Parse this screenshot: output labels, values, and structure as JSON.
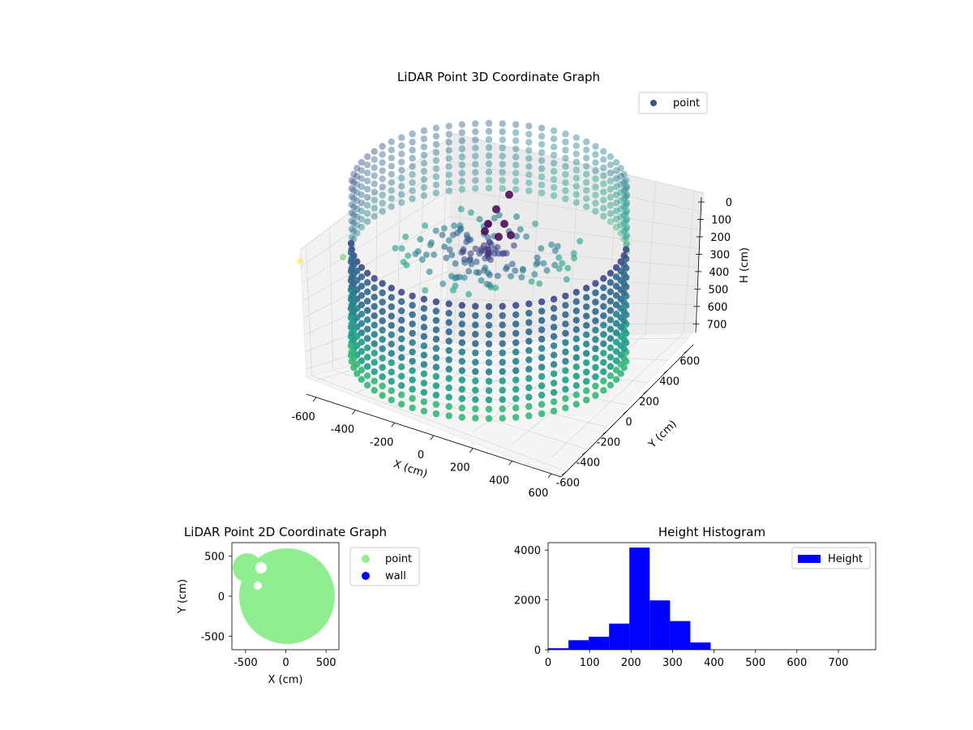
{
  "chart_data": [
    {
      "type": "scatter",
      "projection": "3d",
      "title": "LiDAR Point 3D Coordinate Graph",
      "xlabel": "X (cm)",
      "ylabel": "Y (cm)",
      "zlabel": "H (cm)",
      "xlim": [
        -650,
        650
      ],
      "ylim": [
        -650,
        650
      ],
      "zlim": [
        750,
        0
      ],
      "z_inverted": true,
      "xticks": [
        "-600",
        "-400",
        "-200",
        "0",
        "200",
        "400",
        "600"
      ],
      "yticks": [
        "-600",
        "-400",
        "-200",
        "0",
        "200",
        "400",
        "600"
      ],
      "zticks": [
        "0",
        "100",
        "200",
        "300",
        "400",
        "500",
        "600",
        "700"
      ],
      "grid": true,
      "legend": {
        "placement": "top-right",
        "entries": [
          "point"
        ]
      },
      "colormap": "viridis",
      "series": [
        {
          "name": "point",
          "shape": "ring of vertical point columns",
          "ring_radius_cm": 520,
          "height_range_cm": [
            120,
            700
          ],
          "center_cluster": {
            "x": -50,
            "y": 100,
            "height_range_cm": [
              0,
              350
            ]
          }
        }
      ]
    },
    {
      "type": "scatter",
      "title": "LiDAR Point 2D Coordinate Graph",
      "xlabel": "X (cm)",
      "ylabel": "Y (cm)",
      "xlim": [
        -670,
        660
      ],
      "ylim": [
        -670,
        670
      ],
      "xticks": [
        "-500",
        "0",
        "500"
      ],
      "yticks": [
        "-500",
        "0",
        "500"
      ],
      "legend": {
        "placement": "outside-right",
        "entries": [
          "point",
          "wall"
        ]
      },
      "series": [
        {
          "name": "point",
          "color": "#90ee90",
          "shape": "filled disk radius ~580 cm centered near (0,0)"
        },
        {
          "name": "wall",
          "color": "#0000ff",
          "points": []
        }
      ]
    },
    {
      "type": "bar",
      "subtype": "histogram",
      "title": "Height Histogram",
      "xlabel": "",
      "ylabel": "",
      "xlim": [
        0,
        790
      ],
      "ylim": [
        0,
        4300
      ],
      "xticks": [
        "0",
        "100",
        "200",
        "300",
        "400",
        "500",
        "600",
        "700"
      ],
      "yticks": [
        "0",
        "2000",
        "4000"
      ],
      "legend": {
        "placement": "top-right",
        "entries": [
          "Height"
        ]
      },
      "bin_edges": [
        0,
        49,
        98,
        147,
        196,
        245,
        294,
        343,
        392,
        441,
        490,
        539,
        588,
        637,
        686,
        735,
        784
      ],
      "series": [
        {
          "name": "Height",
          "color": "#0000ff",
          "values": [
            60,
            380,
            520,
            1050,
            4100,
            1980,
            1150,
            290,
            5,
            3,
            2,
            2,
            2,
            2,
            2,
            2
          ]
        }
      ]
    }
  ]
}
